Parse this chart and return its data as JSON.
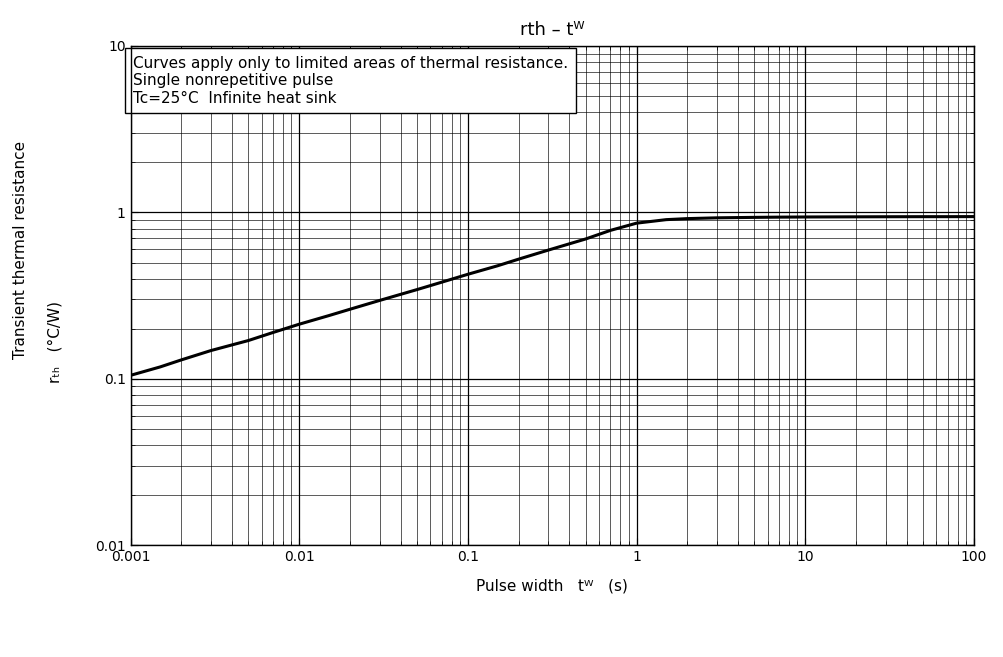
{
  "title": "rth – tᵂ",
  "xlim": [
    0.001,
    100
  ],
  "ylim": [
    0.01,
    10
  ],
  "annotation_lines": [
    "Curves apply only to limited areas of thermal resistance.",
    "Single nonrepetitive pulse",
    "Tc=25°C  Infinite heat sink"
  ],
  "curve_x": [
    0.001,
    0.0015,
    0.002,
    0.003,
    0.005,
    0.007,
    0.01,
    0.015,
    0.02,
    0.03,
    0.05,
    0.07,
    0.1,
    0.15,
    0.2,
    0.3,
    0.5,
    0.7,
    1.0,
    1.5,
    2.0,
    3.0,
    5.0,
    7.0,
    10.0,
    20.0,
    30.0,
    50.0,
    70.0,
    100.0
  ],
  "curve_y": [
    0.105,
    0.118,
    0.13,
    0.148,
    0.17,
    0.19,
    0.213,
    0.24,
    0.262,
    0.296,
    0.344,
    0.381,
    0.425,
    0.478,
    0.524,
    0.594,
    0.693,
    0.78,
    0.862,
    0.905,
    0.918,
    0.928,
    0.934,
    0.937,
    0.939,
    0.941,
    0.942,
    0.943,
    0.943,
    0.944
  ],
  "line_color": "#000000",
  "line_width": 2.2,
  "background_color": "#ffffff",
  "grid_major_color": "#000000",
  "grid_minor_color": "#000000",
  "grid_major_lw": 0.9,
  "grid_minor_lw": 0.45,
  "axis_color": "#000000",
  "title_fontsize": 13,
  "tick_fontsize": 10,
  "label_fontsize": 11,
  "annotation_fontsize": 11,
  "ylabel_top": "Transient thermal resistance",
  "ylabel_bottom": "rₜₕ   (°C/W)",
  "xlabel": "Pulse width   tᵂ   (s)"
}
